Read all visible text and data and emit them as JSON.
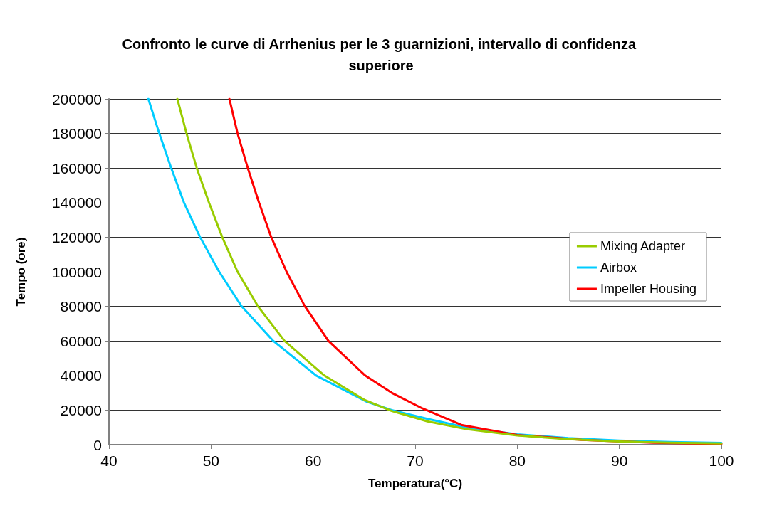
{
  "chart_data": {
    "type": "line",
    "title": "Confronto le curve di Arrhenius per le 3 guarnizioni, intervallo di confidenza superiore",
    "xlabel": "Temperatura(°C)",
    "ylabel": "Tempo (ore)",
    "xlim": [
      40,
      100
    ],
    "xticks": [
      40,
      50,
      60,
      70,
      80,
      90,
      100
    ],
    "ylim": [
      0,
      200000
    ],
    "yticks": [
      0,
      20000,
      40000,
      60000,
      80000,
      100000,
      120000,
      140000,
      160000,
      180000,
      200000
    ],
    "grid": "y",
    "legend": "right",
    "marker": "none",
    "line_style": "solid",
    "series": [
      {
        "name": "Mixing Adapter",
        "color": "#99cc00",
        "x": [
          46.7,
          47.6,
          48.6,
          49.8,
          51.1,
          52.6,
          54.6,
          57.2,
          61.1,
          65,
          67.7,
          71.2,
          75,
          80,
          85,
          90,
          95,
          100
        ],
        "values": [
          200000,
          180000,
          160000,
          140000,
          120000,
          100000,
          80000,
          60000,
          40000,
          26000,
          19500,
          13500,
          9000,
          5300,
          3200,
          1900,
          1100,
          700
        ]
      },
      {
        "name": "Airbox",
        "color": "#00ccff",
        "x": [
          43.86,
          44.93,
          46.1,
          47.35,
          48.93,
          50.8,
          53,
          56.1,
          60.3,
          65.2,
          67.7,
          71.2,
          75,
          80,
          85,
          90,
          95,
          100
        ],
        "values": [
          200000,
          180000,
          160000,
          140000,
          120000,
          100000,
          80000,
          60000,
          40000,
          25000,
          20000,
          14900,
          10000,
          6000,
          3800,
          2400,
          1500,
          1000
        ]
      },
      {
        "name": "Impeller Housing",
        "color": "#ff0000",
        "x": [
          51.8,
          52.6,
          53.6,
          54.7,
          55.9,
          57.4,
          59.2,
          61.5,
          65.1,
          67.7,
          70.7,
          74.6,
          80,
          86.3,
          93.3,
          100
        ],
        "values": [
          200000,
          180000,
          160000,
          140000,
          120000,
          100000,
          80000,
          60000,
          40000,
          30000,
          21000,
          11300,
          5600,
          2800,
          1100,
          400
        ]
      }
    ]
  }
}
